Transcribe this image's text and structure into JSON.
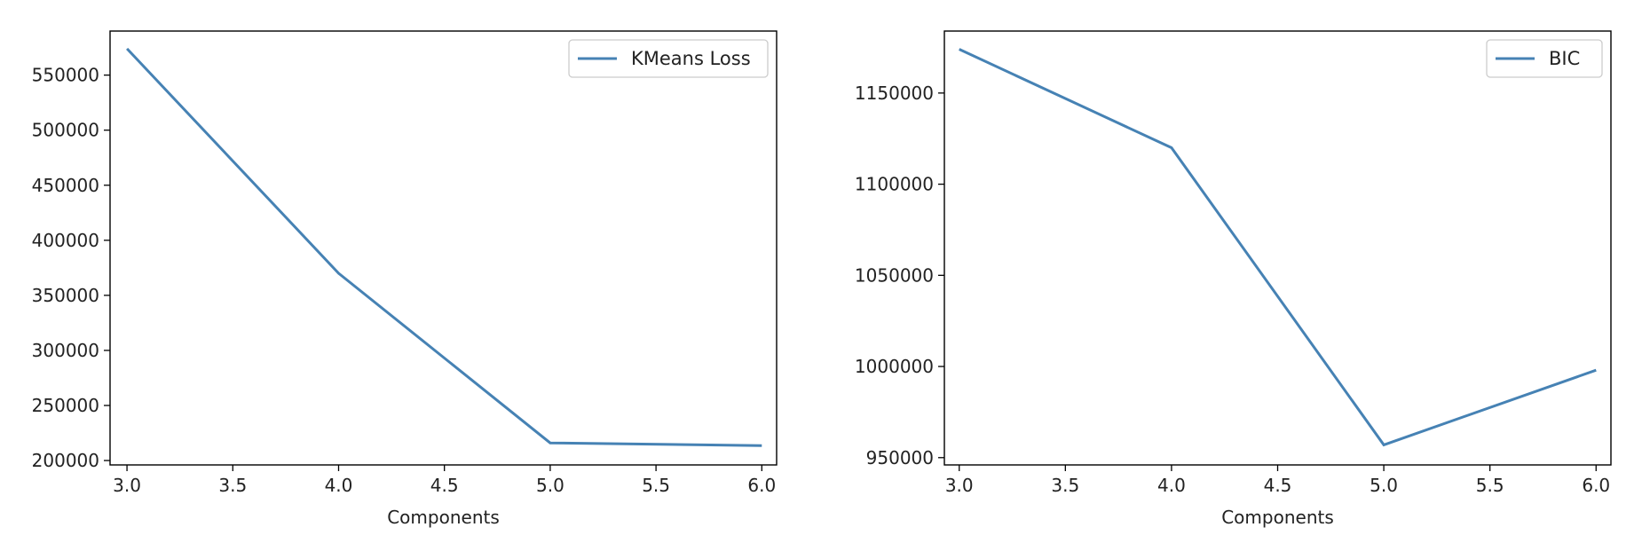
{
  "chart_data": [
    {
      "type": "line",
      "title": "",
      "xlabel": "Components",
      "ylabel": "",
      "xlim": [
        2.92,
        6.07
      ],
      "ylim": [
        196000,
        590000
      ],
      "xticks": [
        3.0,
        3.5,
        4.0,
        4.5,
        5.0,
        5.5,
        6.0
      ],
      "xtick_labels": [
        "3.0",
        "3.5",
        "4.0",
        "4.5",
        "5.0",
        "5.5",
        "6.0"
      ],
      "yticks": [
        200000,
        250000,
        300000,
        350000,
        400000,
        450000,
        500000,
        550000
      ],
      "ytick_labels": [
        "200000",
        "250000",
        "300000",
        "350000",
        "400000",
        "450000",
        "500000",
        "550000"
      ],
      "grid": false,
      "legend_position": "top-right",
      "series": [
        {
          "name": "KMeans Loss",
          "color": "#4682b4",
          "x": [
            3,
            4,
            5,
            6
          ],
          "y": [
            574000,
            370000,
            216000,
            213500
          ]
        }
      ]
    },
    {
      "type": "line",
      "title": "",
      "xlabel": "Components",
      "ylabel": "",
      "xlim": [
        2.93,
        6.07
      ],
      "ylim": [
        946000,
        1184000
      ],
      "xticks": [
        3.0,
        3.5,
        4.0,
        4.5,
        5.0,
        5.5,
        6.0
      ],
      "xtick_labels": [
        "3.0",
        "3.5",
        "4.0",
        "4.5",
        "5.0",
        "5.5",
        "6.0"
      ],
      "yticks": [
        950000,
        1000000,
        1050000,
        1100000,
        1150000
      ],
      "ytick_labels": [
        "950000",
        "1000000",
        "1050000",
        "1100000",
        "1150000"
      ],
      "grid": false,
      "legend_position": "top-right",
      "series": [
        {
          "name": "BIC",
          "color": "#4682b4",
          "x": [
            3,
            4,
            5,
            6
          ],
          "y": [
            1174000,
            1120000,
            957000,
            998000
          ]
        }
      ]
    }
  ]
}
